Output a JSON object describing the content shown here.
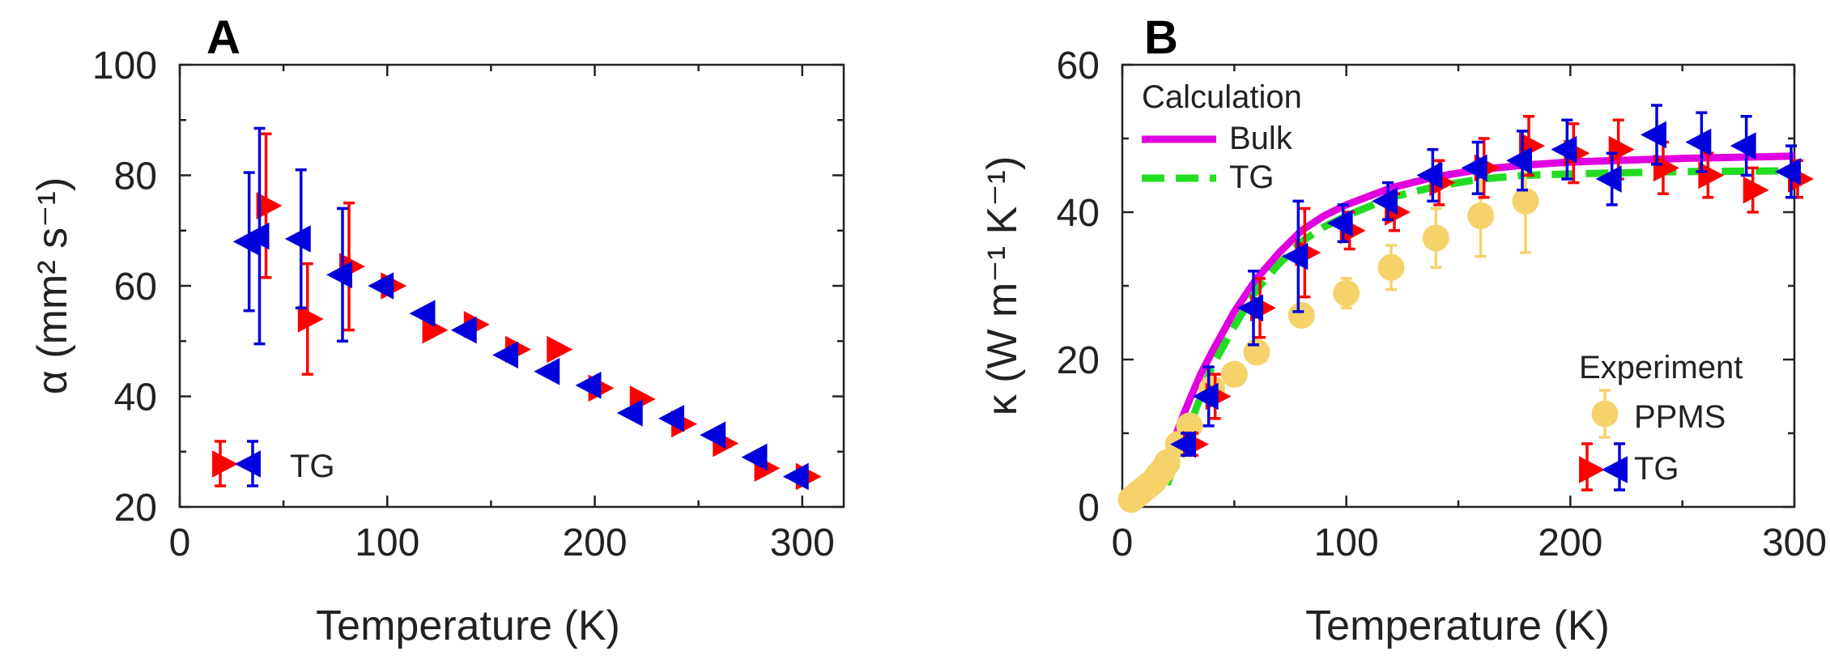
{
  "colors": {
    "tg_red": "#ff0000",
    "tg_blue": "#0000dd",
    "bulk": "#e000e0",
    "calc_tg": "#22dd22",
    "ppms": "#f5d36a",
    "axis": "#222222"
  },
  "chart_data": [
    {
      "type": "scatter",
      "panel_label": "A",
      "xlabel": "Temperature (K)",
      "ylabel": "α (mm² s⁻¹)",
      "xlim": [
        0,
        320
      ],
      "ylim": [
        20,
        100
      ],
      "xticks": [
        0,
        100,
        200,
        300
      ],
      "yticks": [
        20,
        40,
        60,
        80,
        100
      ],
      "legend": {
        "position": "bottom-left",
        "label": "TG"
      },
      "series": [
        {
          "name": "TG (red, right-pointing)",
          "marker": "triangle-right",
          "color": "#ff0000",
          "points": [
            {
              "x": 40,
              "y": 74.5,
              "err": 13
            },
            {
              "x": 60,
              "y": 54,
              "err": 10
            },
            {
              "x": 80,
              "y": 63.5,
              "err": 11.5
            },
            {
              "x": 100,
              "y": 60,
              "err": 0
            },
            {
              "x": 120,
              "y": 52,
              "err": 0
            },
            {
              "x": 140,
              "y": 53,
              "err": 0
            },
            {
              "x": 160,
              "y": 48.5,
              "err": 0
            },
            {
              "x": 180,
              "y": 48.5,
              "err": 0
            },
            {
              "x": 200,
              "y": 41.5,
              "err": 0
            },
            {
              "x": 220,
              "y": 39.5,
              "err": 0
            },
            {
              "x": 240,
              "y": 35,
              "err": 0
            },
            {
              "x": 260,
              "y": 31.5,
              "err": 0
            },
            {
              "x": 280,
              "y": 27,
              "err": 0
            },
            {
              "x": 300,
              "y": 25.5,
              "err": 0
            }
          ]
        },
        {
          "name": "TG (blue, left-pointing)",
          "marker": "triangle-left",
          "color": "#0000dd",
          "points": [
            {
              "x": 35,
              "y": 68,
              "err": 12.5
            },
            {
              "x": 40,
              "y": 69,
              "err": 19.5
            },
            {
              "x": 60,
              "y": 68.5,
              "err": 12.5
            },
            {
              "x": 80,
              "y": 62,
              "err": 12
            },
            {
              "x": 100,
              "y": 60,
              "err": 0
            },
            {
              "x": 120,
              "y": 55,
              "err": 0
            },
            {
              "x": 140,
              "y": 52,
              "err": 0
            },
            {
              "x": 160,
              "y": 47.5,
              "err": 0
            },
            {
              "x": 180,
              "y": 44.5,
              "err": 0
            },
            {
              "x": 200,
              "y": 42,
              "err": 0
            },
            {
              "x": 220,
              "y": 37,
              "err": 0
            },
            {
              "x": 240,
              "y": 36,
              "err": 0
            },
            {
              "x": 260,
              "y": 33,
              "err": 0
            },
            {
              "x": 280,
              "y": 29,
              "err": 0
            },
            {
              "x": 300,
              "y": 25.5,
              "err": 0
            }
          ]
        }
      ]
    },
    {
      "type": "line",
      "panel_label": "B",
      "xlabel": "Temperature (K)",
      "ylabel": "κ (W m⁻¹ K⁻¹)",
      "xlim": [
        0,
        300
      ],
      "ylim": [
        0,
        60
      ],
      "xticks": [
        0,
        100,
        200,
        300
      ],
      "yticks": [
        0,
        20,
        40,
        60
      ],
      "legend_calc": {
        "title": "Calculation",
        "bulk": "Bulk",
        "tg": "TG",
        "position": "top-left"
      },
      "legend_exp": {
        "title": "Experiment",
        "ppms": "PPMS",
        "tg": "TG",
        "position": "bottom-right"
      },
      "lines": [
        {
          "name": "Bulk",
          "color": "#e000e0",
          "style": "solid",
          "x": [
            18,
            22,
            26,
            30,
            35,
            40,
            50,
            60,
            70,
            80,
            90,
            100,
            120,
            140,
            160,
            180,
            200,
            250,
            300
          ],
          "y": [
            4,
            8,
            11.5,
            14.5,
            18,
            21,
            26.5,
            31,
            34.5,
            37.5,
            39.5,
            41,
            43.3,
            44.8,
            45.8,
            46.4,
            46.8,
            47.3,
            47.6
          ]
        },
        {
          "name": "TG",
          "color": "#22dd22",
          "style": "dashed",
          "x": [
            20,
            25,
            30,
            35,
            40,
            50,
            60,
            70,
            80,
            90,
            100,
            120,
            140,
            160,
            180,
            200,
            250,
            300
          ],
          "y": [
            3,
            7,
            11,
            15,
            19,
            24.5,
            29.5,
            33,
            36,
            38,
            39.5,
            42,
            43.5,
            44.5,
            45,
            45.2,
            45.5,
            45.6
          ]
        }
      ],
      "series": [
        {
          "name": "PPMS",
          "marker": "circle",
          "color": "#f5d36a",
          "points": [
            {
              "x": 4,
              "y": 1,
              "err": 0
            },
            {
              "x": 6,
              "y": 1.5,
              "err": 0
            },
            {
              "x": 8,
              "y": 2,
              "err": 0
            },
            {
              "x": 10,
              "y": 2.5,
              "err": 0
            },
            {
              "x": 12,
              "y": 3,
              "err": 0
            },
            {
              "x": 14,
              "y": 3.5,
              "err": 0
            },
            {
              "x": 16,
              "y": 4.3,
              "err": 0
            },
            {
              "x": 18,
              "y": 5,
              "err": 0
            },
            {
              "x": 20,
              "y": 6,
              "err": 0
            },
            {
              "x": 25,
              "y": 8.5,
              "err": 0
            },
            {
              "x": 30,
              "y": 11,
              "err": 0
            },
            {
              "x": 40,
              "y": 16,
              "err": 1.2
            },
            {
              "x": 50,
              "y": 18,
              "err": 1.2
            },
            {
              "x": 60,
              "y": 21,
              "err": 1.5
            },
            {
              "x": 80,
              "y": 26,
              "err": 1.5
            },
            {
              "x": 100,
              "y": 29,
              "err": 2
            },
            {
              "x": 120,
              "y": 32.5,
              "err": 3
            },
            {
              "x": 140,
              "y": 36.5,
              "err": 4
            },
            {
              "x": 160,
              "y": 39.5,
              "err": 5.5
            },
            {
              "x": 180,
              "y": 41.5,
              "err": 7
            }
          ]
        },
        {
          "name": "TG (red, right-pointing)",
          "marker": "triangle-right",
          "color": "#ff0000",
          "points": [
            {
              "x": 30,
              "y": 8.5,
              "err": 1.5
            },
            {
              "x": 40,
              "y": 15,
              "err": 3
            },
            {
              "x": 60,
              "y": 27,
              "err": 4
            },
            {
              "x": 80,
              "y": 34.5,
              "err": 6
            },
            {
              "x": 100,
              "y": 37.5,
              "err": 2.5
            },
            {
              "x": 120,
              "y": 40,
              "err": 2.5
            },
            {
              "x": 140,
              "y": 44,
              "err": 3
            },
            {
              "x": 160,
              "y": 46,
              "err": 4
            },
            {
              "x": 180,
              "y": 49,
              "err": 4
            },
            {
              "x": 200,
              "y": 48,
              "err": 4
            },
            {
              "x": 220,
              "y": 48.5,
              "err": 4
            },
            {
              "x": 240,
              "y": 46,
              "err": 3.5
            },
            {
              "x": 260,
              "y": 45,
              "err": 3
            },
            {
              "x": 280,
              "y": 43,
              "err": 3
            },
            {
              "x": 300,
              "y": 44.5,
              "err": 2.5
            }
          ]
        },
        {
          "name": "TG (blue, left-pointing)",
          "marker": "triangle-left",
          "color": "#0000dd",
          "points": [
            {
              "x": 30,
              "y": 8.5,
              "err": 1.5
            },
            {
              "x": 40,
              "y": 15,
              "err": 4
            },
            {
              "x": 60,
              "y": 27,
              "err": 5
            },
            {
              "x": 80,
              "y": 34,
              "err": 7.5
            },
            {
              "x": 100,
              "y": 38.5,
              "err": 2.5
            },
            {
              "x": 120,
              "y": 41.5,
              "err": 2.5
            },
            {
              "x": 140,
              "y": 45,
              "err": 3.5
            },
            {
              "x": 160,
              "y": 46,
              "err": 3.5
            },
            {
              "x": 180,
              "y": 47,
              "err": 4
            },
            {
              "x": 200,
              "y": 48.5,
              "err": 4
            },
            {
              "x": 220,
              "y": 44.5,
              "err": 3.5
            },
            {
              "x": 240,
              "y": 50.5,
              "err": 4
            },
            {
              "x": 260,
              "y": 49.5,
              "err": 4
            },
            {
              "x": 280,
              "y": 49,
              "err": 4
            },
            {
              "x": 300,
              "y": 45.5,
              "err": 3.5
            }
          ]
        }
      ]
    }
  ]
}
